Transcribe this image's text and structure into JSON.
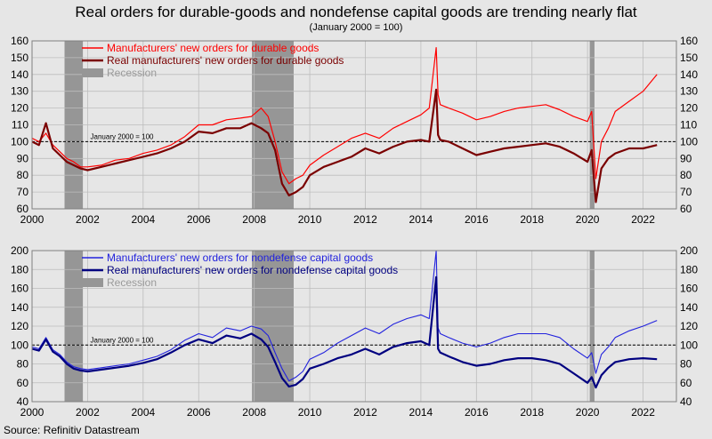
{
  "title": "Real orders for durable-goods and nondefense capital goods are trending nearly flat",
  "subtitle": "(January 2000 = 100)",
  "source": "Source: Refinitiv Datastream",
  "chart_data": [
    {
      "type": "line",
      "x_ticks": [
        "2000",
        "2002",
        "2004",
        "2006",
        "2008",
        "2010",
        "2012",
        "2014",
        "2016",
        "2018",
        "2020",
        "2022"
      ],
      "xlim": [
        2000,
        2023.2
      ],
      "ylim": [
        60,
        160
      ],
      "y_ticks": [
        60,
        70,
        80,
        90,
        100,
        110,
        120,
        130,
        140,
        150,
        160
      ],
      "grid": true,
      "legend_position": "top-left",
      "reference_line": {
        "value": 100,
        "label": "January 2000 = 100"
      },
      "recessions": [
        [
          2001.17,
          2001.83
        ],
        [
          2007.92,
          2009.42
        ],
        [
          2020.08,
          2020.25
        ]
      ],
      "recession_label": "Recession",
      "series": [
        {
          "name": "Manufacturers' new orders for durable goods",
          "color": "#ff0000",
          "x": [
            2000.0,
            2000.25,
            2000.5,
            2000.75,
            2001.0,
            2001.25,
            2001.5,
            2001.75,
            2002.0,
            2002.5,
            2003.0,
            2003.5,
            2004.0,
            2004.5,
            2005.0,
            2005.5,
            2006.0,
            2006.5,
            2007.0,
            2007.5,
            2007.9,
            2008.25,
            2008.5,
            2008.75,
            2009.0,
            2009.25,
            2009.5,
            2009.75,
            2010.0,
            2010.5,
            2011.0,
            2011.5,
            2012.0,
            2012.5,
            2013.0,
            2013.5,
            2014.0,
            2014.3,
            2014.55,
            2014.62,
            2014.7,
            2015.0,
            2015.5,
            2016.0,
            2016.5,
            2017.0,
            2017.5,
            2018.0,
            2018.5,
            2019.0,
            2019.5,
            2020.0,
            2020.15,
            2020.3,
            2020.5,
            2020.75,
            2021.0,
            2021.5,
            2022.0,
            2022.5
          ],
          "y": [
            102,
            100,
            105,
            98,
            94,
            90,
            88,
            85,
            85,
            86,
            89,
            90,
            93,
            95,
            98,
            103,
            110,
            110,
            113,
            114,
            115,
            120,
            115,
            100,
            82,
            75,
            78,
            80,
            86,
            92,
            97,
            102,
            105,
            102,
            108,
            112,
            116,
            120,
            156,
            128,
            122,
            120,
            117,
            113,
            115,
            118,
            120,
            121,
            122,
            119,
            115,
            112,
            118,
            78,
            100,
            108,
            118,
            124,
            130,
            140
          ]
        },
        {
          "name": "Real manufacturers' new orders for durable goods",
          "color": "#7a0000",
          "x": [
            2000.0,
            2000.25,
            2000.5,
            2000.75,
            2001.0,
            2001.25,
            2001.5,
            2001.75,
            2002.0,
            2002.5,
            2003.0,
            2003.5,
            2004.0,
            2004.5,
            2005.0,
            2005.5,
            2006.0,
            2006.5,
            2007.0,
            2007.5,
            2007.9,
            2008.25,
            2008.5,
            2008.75,
            2009.0,
            2009.25,
            2009.5,
            2009.75,
            2010.0,
            2010.5,
            2011.0,
            2011.5,
            2012.0,
            2012.5,
            2013.0,
            2013.5,
            2014.0,
            2014.3,
            2014.55,
            2014.62,
            2014.7,
            2015.0,
            2015.5,
            2016.0,
            2016.5,
            2017.0,
            2017.5,
            2018.0,
            2018.5,
            2019.0,
            2019.5,
            2020.0,
            2020.15,
            2020.3,
            2020.5,
            2020.75,
            2021.0,
            2021.5,
            2022.0,
            2022.5
          ],
          "y": [
            100,
            98,
            111,
            96,
            92,
            88,
            86,
            84,
            83,
            85,
            87,
            89,
            91,
            93,
            96,
            100,
            106,
            105,
            108,
            108,
            111,
            108,
            105,
            95,
            75,
            68,
            70,
            73,
            80,
            85,
            88,
            91,
            96,
            93,
            97,
            100,
            101,
            100,
            131,
            104,
            101,
            100,
            96,
            92,
            94,
            96,
            97,
            98,
            99,
            97,
            93,
            88,
            95,
            64,
            84,
            90,
            93,
            96,
            96,
            98
          ]
        }
      ]
    },
    {
      "type": "line",
      "x_ticks": [
        "2000",
        "2002",
        "2004",
        "2006",
        "2008",
        "2010",
        "2012",
        "2014",
        "2016",
        "2018",
        "2020",
        "2022"
      ],
      "xlim": [
        2000,
        2023.2
      ],
      "ylim": [
        40,
        200
      ],
      "y_ticks": [
        40,
        60,
        80,
        100,
        120,
        140,
        160,
        180,
        200
      ],
      "grid": true,
      "legend_position": "top-left",
      "reference_line": {
        "value": 100,
        "label": "January 2000 = 100"
      },
      "recessions": [
        [
          2001.17,
          2001.83
        ],
        [
          2007.92,
          2009.42
        ],
        [
          2020.08,
          2020.25
        ]
      ],
      "recession_label": "Recession",
      "series": [
        {
          "name": "Manufacturers' new orders for nondefense capital goods",
          "color": "#2222dd",
          "x": [
            2000.0,
            2000.25,
            2000.5,
            2000.75,
            2001.0,
            2001.25,
            2001.5,
            2001.75,
            2002.0,
            2002.5,
            2003.0,
            2003.5,
            2004.0,
            2004.5,
            2005.0,
            2005.5,
            2006.0,
            2006.5,
            2007.0,
            2007.5,
            2007.9,
            2008.25,
            2008.5,
            2008.75,
            2009.0,
            2009.25,
            2009.5,
            2009.75,
            2010.0,
            2010.5,
            2011.0,
            2011.5,
            2012.0,
            2012.5,
            2013.0,
            2013.5,
            2014.0,
            2014.3,
            2014.55,
            2014.62,
            2014.7,
            2015.0,
            2015.5,
            2016.0,
            2016.5,
            2017.0,
            2017.5,
            2018.0,
            2018.5,
            2019.0,
            2019.5,
            2020.0,
            2020.15,
            2020.3,
            2020.5,
            2020.75,
            2021.0,
            2021.5,
            2022.0,
            2022.5
          ],
          "y": [
            98,
            96,
            108,
            95,
            90,
            82,
            77,
            75,
            74,
            76,
            78,
            80,
            84,
            88,
            95,
            105,
            112,
            108,
            118,
            115,
            120,
            117,
            110,
            92,
            75,
            62,
            66,
            72,
            85,
            92,
            102,
            110,
            118,
            112,
            122,
            128,
            132,
            128,
            200,
            118,
            112,
            108,
            102,
            98,
            102,
            108,
            112,
            112,
            112,
            108,
            96,
            86,
            92,
            70,
            90,
            98,
            108,
            115,
            120,
            126
          ]
        },
        {
          "name": "Real manufacturers' new orders for nondefense capital goods",
          "color": "#000080",
          "x": [
            2000.0,
            2000.25,
            2000.5,
            2000.75,
            2001.0,
            2001.25,
            2001.5,
            2001.75,
            2002.0,
            2002.5,
            2003.0,
            2003.5,
            2004.0,
            2004.5,
            2005.0,
            2005.5,
            2006.0,
            2006.5,
            2007.0,
            2007.5,
            2007.9,
            2008.25,
            2008.5,
            2008.75,
            2009.0,
            2009.25,
            2009.5,
            2009.75,
            2010.0,
            2010.5,
            2011.0,
            2011.5,
            2012.0,
            2012.5,
            2013.0,
            2013.5,
            2014.0,
            2014.3,
            2014.55,
            2014.62,
            2014.7,
            2015.0,
            2015.5,
            2016.0,
            2016.5,
            2017.0,
            2017.5,
            2018.0,
            2018.5,
            2019.0,
            2019.5,
            2020.0,
            2020.15,
            2020.3,
            2020.5,
            2020.75,
            2021.0,
            2021.5,
            2022.0,
            2022.5
          ],
          "y": [
            96,
            94,
            106,
            93,
            88,
            80,
            75,
            73,
            72,
            74,
            76,
            78,
            81,
            85,
            92,
            100,
            106,
            102,
            110,
            107,
            112,
            106,
            98,
            82,
            65,
            56,
            58,
            64,
            75,
            80,
            86,
            90,
            96,
            90,
            98,
            102,
            104,
            100,
            172,
            96,
            92,
            88,
            82,
            78,
            80,
            84,
            86,
            86,
            84,
            80,
            70,
            60,
            66,
            55,
            68,
            76,
            82,
            85,
            86,
            85
          ]
        }
      ]
    }
  ]
}
